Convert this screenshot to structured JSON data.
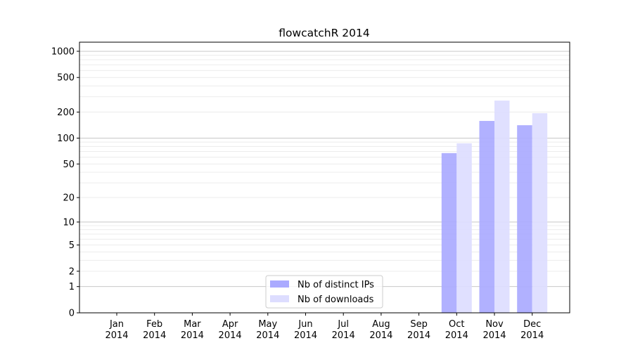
{
  "chart_data": {
    "type": "bar",
    "title": "flowcatchR 2014",
    "xlabel": "",
    "ylabel": "",
    "y_scale": "log(1+y)",
    "ylim": [
      0,
      1300
    ],
    "y_ticks": [
      0,
      1,
      2,
      5,
      10,
      20,
      50,
      100,
      200,
      500,
      1000
    ],
    "grid": true,
    "legend_position": "lower-center",
    "categories": [
      "Jan\n2014",
      "Feb\n2014",
      "Mar\n2014",
      "Apr\n2014",
      "May\n2014",
      "Jun\n2014",
      "Jul\n2014",
      "Aug\n2014",
      "Sep\n2014",
      "Oct\n2014",
      "Nov\n2014",
      "Dec\n2014"
    ],
    "series": [
      {
        "name": "Nb of distinct IPs",
        "color": "#aaaaff",
        "values": [
          0,
          0,
          0,
          0,
          0,
          0,
          0,
          0,
          0,
          67,
          158,
          141
        ]
      },
      {
        "name": "Nb of downloads",
        "color": "#ddddff",
        "values": [
          0,
          0,
          0,
          0,
          0,
          0,
          0,
          0,
          0,
          87,
          271,
          194
        ]
      }
    ]
  }
}
